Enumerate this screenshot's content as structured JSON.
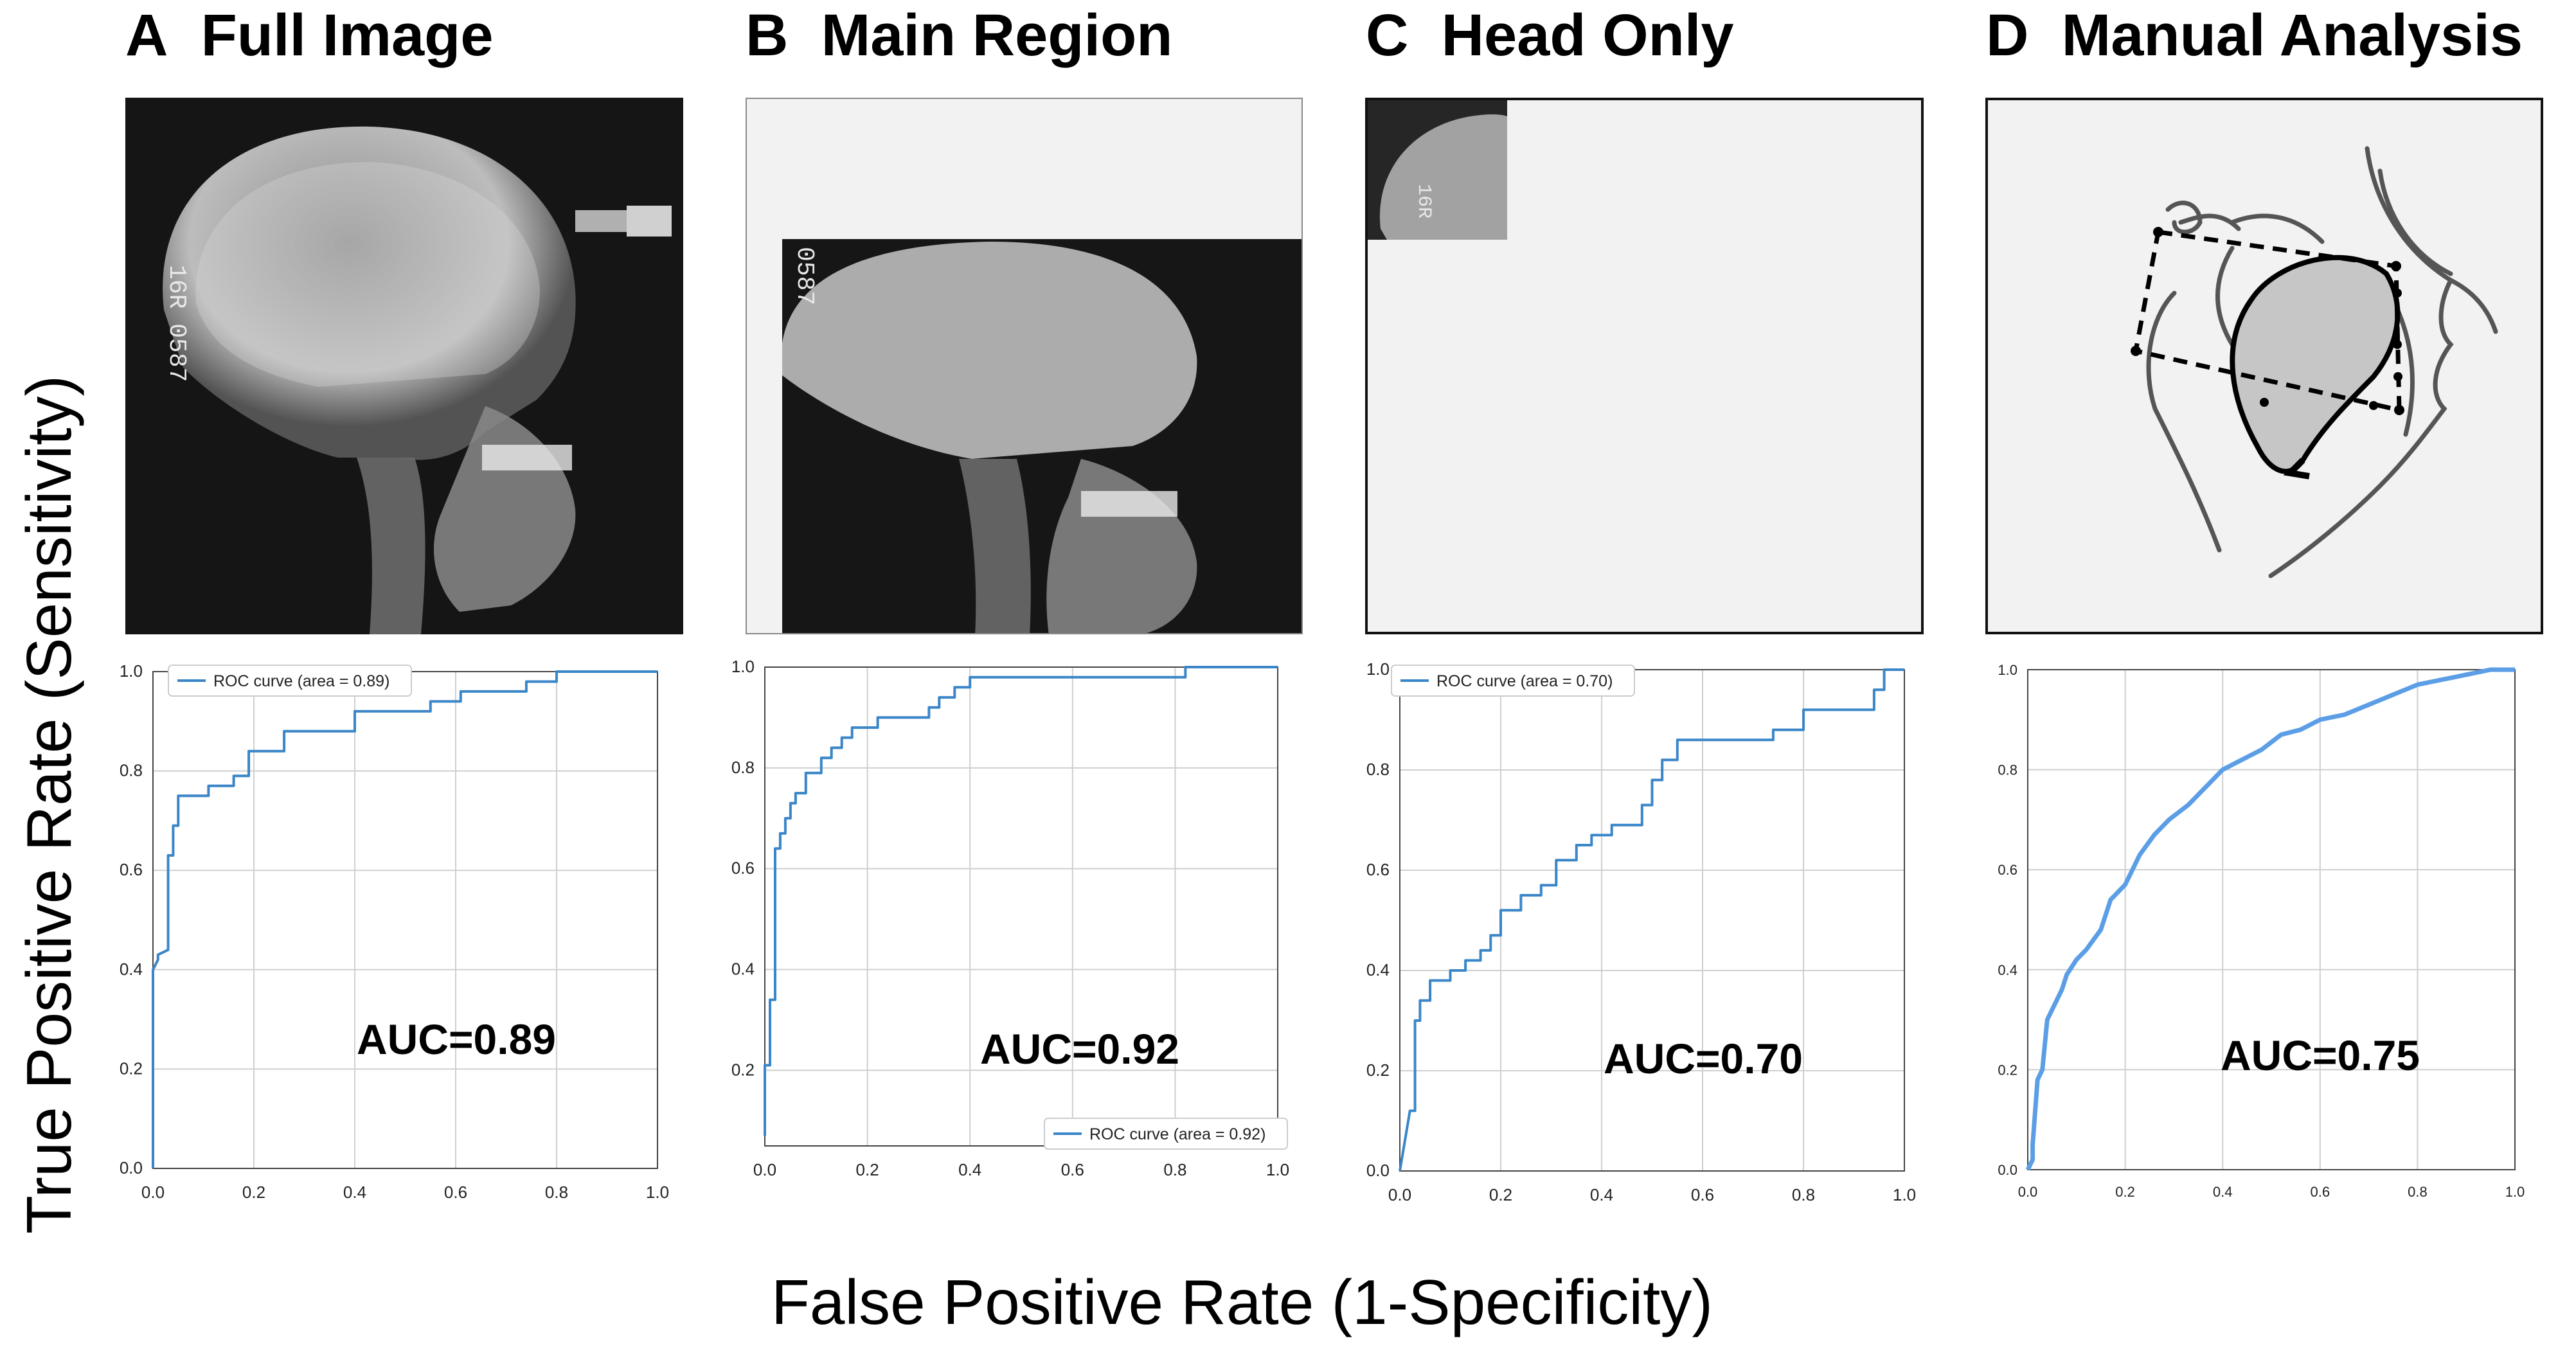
{
  "panels": [
    {
      "letter": "A",
      "title": "Full Image"
    },
    {
      "letter": "B",
      "title": "Main Region"
    },
    {
      "letter": "C",
      "title": "Head Only"
    },
    {
      "letter": "D",
      "title": "Manual Analysis"
    }
  ],
  "axes": {
    "ylabel": "True Positive Rate (Sensitivity)",
    "xlabel": "False Positive Rate (1-Specificity)"
  },
  "xray_labels": {
    "A": "16R 0587",
    "B": "0587",
    "C": "16R"
  },
  "colors": {
    "roc": "#3a86c8",
    "roc_d": "#5b9ee6",
    "grid": "#cfcfcf",
    "placeholder": "#f2f2f2",
    "region": "#c8c8c8"
  },
  "chart_data": [
    {
      "type": "line",
      "panel": "A",
      "xlim": [
        0,
        1
      ],
      "ylim": [
        0,
        1
      ],
      "x_ticks": [
        "0.0",
        "0.2",
        "0.4",
        "0.6",
        "0.8",
        "1.0"
      ],
      "y_ticks": [
        "0.0",
        "0.2",
        "0.4",
        "0.6",
        "0.8",
        "1.0"
      ],
      "legend": "ROC curve (area = 0.89)",
      "legend_loc": "upper left",
      "annotation": "AUC=0.89",
      "grid": true,
      "x": [
        0,
        0,
        0.01,
        0.01,
        0.03,
        0.03,
        0.04,
        0.04,
        0.05,
        0.05,
        0.11,
        0.11,
        0.16,
        0.16,
        0.19,
        0.19,
        0.26,
        0.26,
        0.4,
        0.4,
        0.55,
        0.55,
        0.61,
        0.61,
        0.74,
        0.74,
        0.8,
        0.8,
        1.0
      ],
      "y": [
        0,
        0.4,
        0.42,
        0.43,
        0.44,
        0.63,
        0.63,
        0.69,
        0.69,
        0.75,
        0.75,
        0.77,
        0.77,
        0.79,
        0.79,
        0.84,
        0.84,
        0.88,
        0.88,
        0.92,
        0.92,
        0.94,
        0.94,
        0.96,
        0.96,
        0.98,
        0.98,
        1.0,
        1.0
      ]
    },
    {
      "type": "line",
      "panel": "B",
      "xlim": [
        0,
        1
      ],
      "ylim": [
        0,
        1
      ],
      "x_ticks": [
        "0.0",
        "0.2",
        "0.4",
        "0.6",
        "0.8",
        "1.0"
      ],
      "y_ticks": [
        "0.2",
        "0.4",
        "0.6",
        "0.8",
        "1.0"
      ],
      "legend": "ROC curve (area = 0.92)",
      "legend_loc": "lower right",
      "annotation": "AUC=0.92",
      "grid": true,
      "x": [
        0,
        0,
        0.01,
        0.01,
        0.02,
        0.02,
        0.03,
        0.03,
        0.04,
        0.04,
        0.05,
        0.05,
        0.06,
        0.06,
        0.08,
        0.08,
        0.11,
        0.11,
        0.13,
        0.13,
        0.15,
        0.15,
        0.17,
        0.17,
        0.22,
        0.22,
        0.32,
        0.32,
        0.34,
        0.34,
        0.37,
        0.37,
        0.4,
        0.4,
        0.82,
        0.82,
        1.0
      ],
      "y": [
        0.07,
        0.21,
        0.21,
        0.34,
        0.34,
        0.64,
        0.64,
        0.67,
        0.67,
        0.7,
        0.7,
        0.73,
        0.73,
        0.75,
        0.75,
        0.79,
        0.79,
        0.82,
        0.82,
        0.84,
        0.84,
        0.86,
        0.86,
        0.88,
        0.88,
        0.9,
        0.9,
        0.92,
        0.92,
        0.94,
        0.94,
        0.96,
        0.96,
        0.98,
        0.98,
        1.0,
        1.0
      ]
    },
    {
      "type": "line",
      "panel": "C",
      "xlim": [
        0,
        1
      ],
      "ylim": [
        0,
        1
      ],
      "x_ticks": [
        "0.0",
        "0.2",
        "0.4",
        "0.6",
        "0.8",
        "1.0"
      ],
      "y_ticks": [
        "0.0",
        "0.2",
        "0.4",
        "0.6",
        "0.8",
        "1.0"
      ],
      "legend": "ROC curve (area = 0.70)",
      "legend_loc": "upper left",
      "annotation": "AUC=0.70",
      "grid": true,
      "x": [
        0,
        0.02,
        0.03,
        0.03,
        0.04,
        0.04,
        0.06,
        0.06,
        0.1,
        0.1,
        0.13,
        0.13,
        0.16,
        0.16,
        0.18,
        0.18,
        0.2,
        0.2,
        0.24,
        0.24,
        0.28,
        0.28,
        0.31,
        0.31,
        0.35,
        0.35,
        0.38,
        0.38,
        0.42,
        0.42,
        0.48,
        0.48,
        0.5,
        0.5,
        0.52,
        0.52,
        0.55,
        0.55,
        0.74,
        0.74,
        0.8,
        0.8,
        0.94,
        0.94,
        0.96,
        0.96,
        1.0
      ],
      "y": [
        0,
        0.12,
        0.12,
        0.3,
        0.3,
        0.34,
        0.34,
        0.38,
        0.38,
        0.4,
        0.4,
        0.42,
        0.42,
        0.44,
        0.44,
        0.47,
        0.47,
        0.52,
        0.52,
        0.55,
        0.55,
        0.57,
        0.57,
        0.62,
        0.62,
        0.65,
        0.65,
        0.67,
        0.67,
        0.69,
        0.69,
        0.73,
        0.73,
        0.78,
        0.78,
        0.82,
        0.82,
        0.86,
        0.86,
        0.88,
        0.88,
        0.92,
        0.92,
        0.96,
        0.96,
        1.0,
        1.0
      ]
    },
    {
      "type": "line",
      "panel": "D",
      "xlim": [
        0,
        1
      ],
      "ylim": [
        0,
        1
      ],
      "x_ticks": [
        "0.0",
        "0.2",
        "0.4",
        "0.6",
        "0.8",
        "1.0"
      ],
      "y_ticks": [
        "0.0",
        "0.2",
        "0.4",
        "0.6",
        "0.8",
        "1.0"
      ],
      "legend": "",
      "annotation": "AUC=0.75",
      "grid": true,
      "x": [
        0,
        0.01,
        0.01,
        0.02,
        0.03,
        0.04,
        0.05,
        0.07,
        0.08,
        0.1,
        0.12,
        0.15,
        0.17,
        0.2,
        0.23,
        0.26,
        0.29,
        0.33,
        0.37,
        0.4,
        0.44,
        0.48,
        0.52,
        0.56,
        0.6,
        0.65,
        0.7,
        0.75,
        0.8,
        0.85,
        0.9,
        0.95,
        1.0
      ],
      "y": [
        0,
        0.02,
        0.05,
        0.18,
        0.2,
        0.3,
        0.32,
        0.36,
        0.39,
        0.42,
        0.44,
        0.48,
        0.54,
        0.57,
        0.63,
        0.67,
        0.7,
        0.73,
        0.77,
        0.8,
        0.82,
        0.84,
        0.87,
        0.88,
        0.9,
        0.91,
        0.93,
        0.95,
        0.97,
        0.98,
        0.99,
        1.0,
        1.0
      ]
    }
  ]
}
